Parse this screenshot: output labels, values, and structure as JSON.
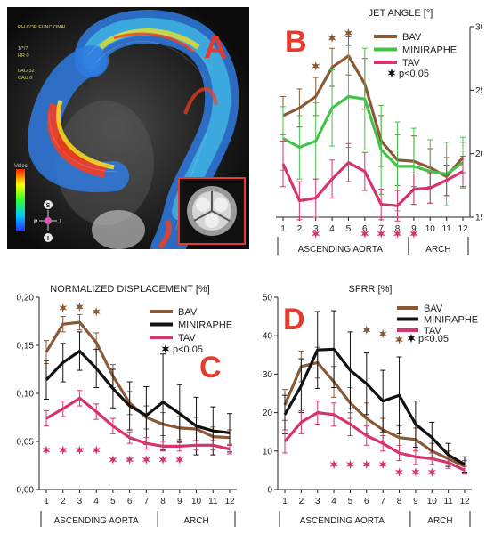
{
  "panels": {
    "A": {
      "letter": "A",
      "header_lines": [
        "RH COR FUNCIONAL",
        "1/*/7",
        "HR 0",
        "LAO 32",
        "CAU 6"
      ],
      "colorbar_label": "Veloc.",
      "orientation": {
        "s": "S",
        "l": "L",
        "r": "R",
        "i": "I"
      },
      "colors": {
        "letter": "#e53a2d",
        "inset_border": "#e53a2d",
        "background": "#101010"
      }
    }
  },
  "colors": {
    "bav": "#8a5a36",
    "miniraphe": "#45c24a",
    "miniraphe_cd": "#111111",
    "tav": "#d6336f",
    "panel_letter": "#e53a2d",
    "axis": "#222222"
  },
  "chart_data": [
    {
      "panel": "B",
      "type": "line",
      "title": "JET ANGLE [°]",
      "x": [
        1,
        2,
        3,
        4,
        5,
        6,
        7,
        8,
        9,
        10,
        11,
        12
      ],
      "ylim": [
        15,
        30
      ],
      "yticks": [
        15,
        20,
        25,
        30
      ],
      "ytick_labels": [
        "15",
        "20",
        "25",
        "30"
      ],
      "y_axis_side": "right",
      "series": [
        {
          "name": "BAV",
          "color": "#8a5a36",
          "values": [
            23,
            23.6,
            24.5,
            26.8,
            27.7,
            25.5,
            21,
            19.5,
            19.4,
            18.9,
            18.2,
            19.7
          ],
          "err": [
            1.5,
            1.5,
            1.5,
            1.5,
            1.5,
            2,
            2,
            2,
            2,
            1.5,
            1.5,
            1.2
          ]
        },
        {
          "name": "MINIRAPHE",
          "color": "#45c24a",
          "values": [
            21.2,
            20.5,
            21,
            23.6,
            24.5,
            24.3,
            20.3,
            19,
            19,
            18.6,
            18.4,
            19.3
          ],
          "err": [
            2.5,
            2.5,
            3,
            3,
            4,
            4,
            3.5,
            3.5,
            3,
            2.5,
            2.5,
            2
          ]
        },
        {
          "name": "TAV",
          "color": "#d6336f",
          "values": [
            19.2,
            16.3,
            16.5,
            18,
            19.3,
            18.6,
            16,
            15.9,
            17.2,
            17.3,
            17.9,
            18.6
          ],
          "err": [
            1.8,
            1.5,
            1.5,
            1.5,
            1.5,
            1.5,
            1.2,
            1.2,
            1.2,
            1.2,
            1.2,
            1.2
          ]
        }
      ],
      "legend": [
        "BAV",
        "MINIRAPHE",
        "TAV"
      ],
      "significance_label": "p<0.05",
      "significance": [
        {
          "color": "#8a5a36",
          "x": [
            3,
            4,
            5
          ],
          "y": [
            26.9,
            29.1,
            29.5
          ]
        },
        {
          "color": "#d6336f",
          "x": [
            3,
            6,
            7,
            8,
            9
          ],
          "y": [
            13.7,
            13.7,
            13.7,
            13.7,
            13.7
          ]
        }
      ],
      "x_groups": [
        {
          "label": "ASCENDING AORTA",
          "from": 1,
          "to": 8
        },
        {
          "label": "ARCH",
          "from": 9,
          "to": 12
        }
      ]
    },
    {
      "panel": "C",
      "type": "line",
      "title": "NORMALIZED DISPLACEMENT [%]",
      "x": [
        1,
        2,
        3,
        4,
        5,
        6,
        7,
        8,
        9,
        10,
        11,
        12
      ],
      "ylim": [
        0,
        0.2
      ],
      "yticks": [
        0,
        0.05,
        0.1,
        0.15,
        0.2
      ],
      "ytick_labels": [
        "0,00",
        "0,05",
        "0,10",
        "0,15",
        "0,20"
      ],
      "y_axis_side": "left",
      "series": [
        {
          "name": "BAV",
          "color": "#8a5a36",
          "values": [
            0.143,
            0.172,
            0.174,
            0.153,
            0.118,
            0.09,
            0.075,
            0.068,
            0.064,
            0.063,
            0.055,
            0.054
          ],
          "err": [
            0.012,
            0.008,
            0.008,
            0.01,
            0.012,
            0.012,
            0.012,
            0.012,
            0.012,
            0.012,
            0.01,
            0.008
          ]
        },
        {
          "name": "MINIRAPHE",
          "color": "#111111",
          "values": [
            0.114,
            0.132,
            0.144,
            0.126,
            0.105,
            0.087,
            0.077,
            0.091,
            0.079,
            0.066,
            0.061,
            0.059
          ],
          "err": [
            0.02,
            0.02,
            0.02,
            0.02,
            0.02,
            0.025,
            0.03,
            0.05,
            0.03,
            0.03,
            0.025,
            0.02
          ]
        },
        {
          "name": "TAV",
          "color": "#d6336f",
          "values": [
            0.074,
            0.084,
            0.095,
            0.081,
            0.066,
            0.054,
            0.048,
            0.045,
            0.045,
            0.046,
            0.046,
            0.042
          ],
          "err": [
            0.008,
            0.008,
            0.008,
            0.008,
            0.008,
            0.006,
            0.006,
            0.005,
            0.005,
            0.005,
            0.005,
            0.005
          ]
        }
      ],
      "legend": [
        "BAV",
        "MINIRAPHE",
        "TAV"
      ],
      "significance_label": "p<0.05",
      "significance": [
        {
          "color": "#8a5a36",
          "x": [
            2,
            3,
            4
          ],
          "y": [
            0.189,
            0.19,
            0.185
          ]
        },
        {
          "color": "#d6336f",
          "x": [
            1,
            2,
            3,
            4,
            5,
            6,
            7,
            8,
            9
          ],
          "y": [
            0.041,
            0.041,
            0.041,
            0.041,
            0.031,
            0.031,
            0.031,
            0.031,
            0.031
          ]
        }
      ],
      "x_groups": [
        {
          "label": "ASCENDING AORTA",
          "from": 1,
          "to": 7
        },
        {
          "label": "ARCH",
          "from": 8,
          "to": 12
        }
      ]
    },
    {
      "panel": "D",
      "type": "line",
      "title": "SFRR [%]",
      "x": [
        1,
        2,
        3,
        4,
        5,
        6,
        7,
        8,
        9,
        10,
        11,
        12
      ],
      "ylim": [
        0,
        50
      ],
      "yticks": [
        0,
        10,
        20,
        30,
        40,
        50
      ],
      "ytick_labels": [
        "0",
        "10",
        "20",
        "30",
        "40",
        "50"
      ],
      "y_axis_side": "left",
      "series": [
        {
          "name": "BAV",
          "color": "#8a5a36",
          "values": [
            22,
            32,
            33,
            28,
            22.5,
            18.5,
            15.5,
            13.5,
            13,
            10,
            8,
            6
          ],
          "err": [
            4,
            4,
            4,
            4,
            4,
            4,
            3,
            3,
            3,
            2,
            2,
            1.5
          ]
        },
        {
          "name": "MINIRAPHE",
          "color": "#111111",
          "values": [
            19.5,
            27,
            36.3,
            36.5,
            31,
            27.5,
            23,
            24.5,
            17,
            13.5,
            9,
            6.5
          ],
          "err": [
            5,
            7,
            10,
            10,
            10,
            8,
            8,
            10,
            6,
            4,
            3,
            2
          ]
        },
        {
          "name": "TAV",
          "color": "#d6336f",
          "values": [
            12.5,
            17.5,
            20,
            19.5,
            17,
            14,
            12,
            9.5,
            8.5,
            8,
            7,
            5
          ],
          "err": [
            3,
            3,
            3,
            3,
            3,
            2.5,
            2,
            2,
            2,
            1.5,
            1.5,
            1
          ]
        }
      ],
      "legend": [
        "BAV",
        "MINIRAPHE",
        "TAV"
      ],
      "significance_label": "p<0.05",
      "significance": [
        {
          "color": "#8a5a36",
          "x": [
            6,
            7,
            8
          ],
          "y": [
            41.5,
            40.5,
            39
          ]
        },
        {
          "color": "#d6336f",
          "x": [
            4,
            5,
            6,
            7,
            8,
            9,
            10
          ],
          "y": [
            6.5,
            6.5,
            6.5,
            6.5,
            4.5,
            4.5,
            4.5
          ]
        }
      ],
      "x_groups": [
        {
          "label": "ASCENDING AORTA",
          "from": 1,
          "to": 8
        },
        {
          "label": "ARCH",
          "from": 9,
          "to": 12
        }
      ]
    }
  ]
}
